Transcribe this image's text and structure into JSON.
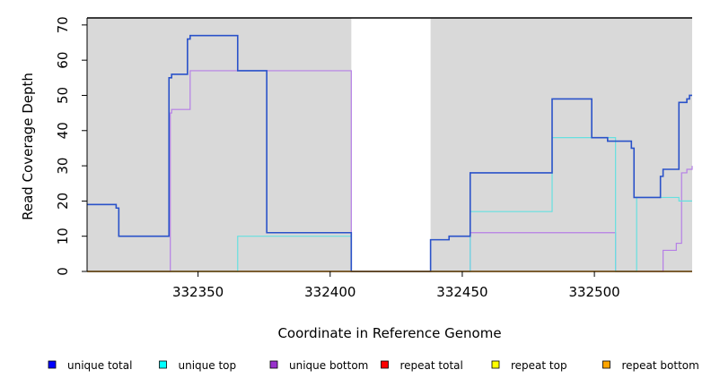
{
  "chart_data": {
    "type": "line",
    "style": "step",
    "title": "",
    "xlabel": "Coordinate in Reference Genome",
    "ylabel": "Read Coverage Depth",
    "xlim": [
      332308,
      332537
    ],
    "ylim": [
      0,
      72
    ],
    "xticks": [
      332350,
      332400,
      332450,
      332500
    ],
    "yticks": [
      0,
      10,
      20,
      30,
      40,
      50,
      60,
      70
    ],
    "background_color": "#d9d9d9",
    "unshaded_region": [
      332408,
      332438
    ],
    "series": [
      {
        "name": "unique bottom",
        "color": "#b57ee6",
        "x": [
          332308,
          332339,
          332339.5,
          332340,
          332341,
          332346,
          332347,
          332350,
          332365,
          332376,
          332408,
          332438,
          332453,
          332499,
          332508,
          332525,
          332526,
          332531,
          332533,
          332534,
          332535,
          332537
        ],
        "y": [
          0,
          0,
          45,
          46,
          46,
          46,
          57,
          57,
          57,
          57,
          0,
          0,
          11,
          11,
          0,
          0,
          6,
          8,
          28,
          28,
          29,
          30
        ]
      },
      {
        "name": "unique top",
        "color": "#66e0e0",
        "x": [
          332308,
          332339,
          332365,
          332408,
          332438,
          332453,
          332484,
          332499,
          332508,
          332515,
          332516,
          332527,
          332532,
          332537
        ],
        "y": [
          0,
          0,
          10,
          0,
          0,
          17,
          38,
          38,
          0,
          0,
          21,
          21,
          20,
          20
        ]
      },
      {
        "name": "unique total",
        "color": "#2a52c9",
        "x": [
          332308,
          332319,
          332320,
          332339,
          332340,
          332341,
          332346,
          332347,
          332365,
          332376,
          332408,
          332438,
          332445,
          332453,
          332484,
          332499,
          332505,
          332514,
          332515,
          332525,
          332526,
          332531,
          332532,
          332535,
          332536,
          332537
        ],
        "y": [
          19,
          18,
          10,
          55,
          56,
          56,
          66,
          67,
          57,
          11,
          0,
          9,
          10,
          28,
          49,
          38,
          37,
          35,
          21,
          27,
          29,
          29,
          48,
          49,
          50,
          50
        ]
      },
      {
        "name": "repeat total",
        "color": "#ff0000",
        "x": [
          332308,
          332537
        ],
        "y": [
          0,
          0
        ]
      },
      {
        "name": "repeat top",
        "color": "#ffff00",
        "x": [
          332308,
          332537
        ],
        "y": [
          0,
          0
        ]
      },
      {
        "name": "repeat bottom",
        "color": "#ffa500",
        "x": [
          332308,
          332537
        ],
        "y": [
          0,
          0
        ]
      }
    ],
    "legend": [
      {
        "label": "unique total",
        "color": "#0000ff"
      },
      {
        "label": "unique top",
        "color": "#00ffff"
      },
      {
        "label": "unique bottom",
        "color": "#9932cc"
      },
      {
        "label": "repeat total",
        "color": "#ff0000"
      },
      {
        "label": "repeat top",
        "color": "#ffff00"
      },
      {
        "label": "repeat bottom",
        "color": "#ffa500"
      }
    ],
    "legend_position": "bottom"
  }
}
